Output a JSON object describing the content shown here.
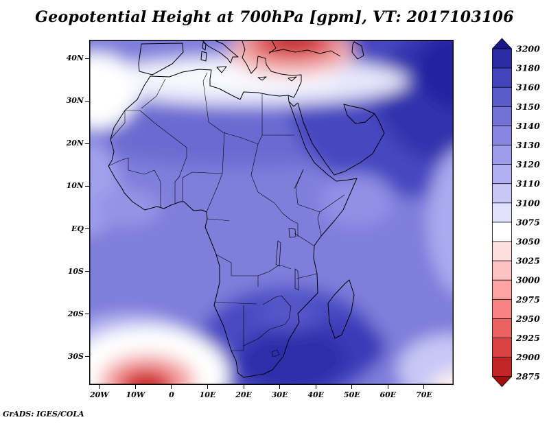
{
  "title": "Geopotential Height at 700hPa [gpm], VT: 2017103106",
  "credit": "GrADS: IGES/COLA",
  "chart_data": {
    "type": "heatmap",
    "title": "Geopotential Height at 700hPa [gpm], VT: 2017103106",
    "variable": "Geopotential Height",
    "level": "700hPa",
    "units": "gpm",
    "valid_time": "2017103106",
    "region": "Africa, Mediterranean and surrounding oceans",
    "x_axis": {
      "axis": "longitude",
      "ticks": [
        "20W",
        "10W",
        "0",
        "10E",
        "20E",
        "30E",
        "40E",
        "50E",
        "60E",
        "70E"
      ]
    },
    "y_axis": {
      "axis": "latitude",
      "ticks": [
        "40N",
        "30N",
        "20N",
        "10N",
        "EQ",
        "10S",
        "20S",
        "30S"
      ]
    },
    "colorbar": {
      "orientation": "vertical-right",
      "levels": [
        3200,
        3180,
        3160,
        3150,
        3140,
        3130,
        3120,
        3110,
        3100,
        3075,
        3050,
        3025,
        3000,
        2975,
        2950,
        2925,
        2900,
        2875
      ],
      "colors": [
        "#17178c",
        "#2b2ba3",
        "#4343bb",
        "#5b5bc9",
        "#7171d6",
        "#8787e1",
        "#9c9cea",
        "#b1b1f1",
        "#c8c8f7",
        "#e1e1fb",
        "#ffffff",
        "#ffdede",
        "#ffc2c2",
        "#ffa3a3",
        "#f88383",
        "#ec6262",
        "#da4141",
        "#c22525",
        "#a30f0f"
      ]
    },
    "features": [
      {
        "region": "top center near Turkey / Black Sea (30E-40E, ~40N)",
        "value": "deep minimum, core below 2875 gpm (dark red)"
      },
      {
        "region": "band along ~33-37N across the Mediterranean",
        "value": "about 3050-3100 gpm (white band)"
      },
      {
        "region": "northwest corner near 20W, 35N",
        "value": "about 3050-3100 gpm (white patch)"
      },
      {
        "region": "southwest corner near 10W, 33S",
        "value": "minimum about 2900-2925 gpm (red core ringed by white)"
      },
      {
        "region": "southern Africa interior 20E-45E, 22S-35S",
        "value": "maximum above 3180 gpm (dark navy)"
      },
      {
        "region": "northeast quadrant, Arabia to 77E north of 15N",
        "value": "3160-3200 gpm (dark blue)"
      },
      {
        "region": "most of tropical Africa",
        "value": "about 3140-3160 gpm (medium blue)"
      },
      {
        "region": "right edge near equator and bottom-right corner",
        "value": "about 3100-3130 gpm (light blue / pale)"
      }
    ]
  }
}
